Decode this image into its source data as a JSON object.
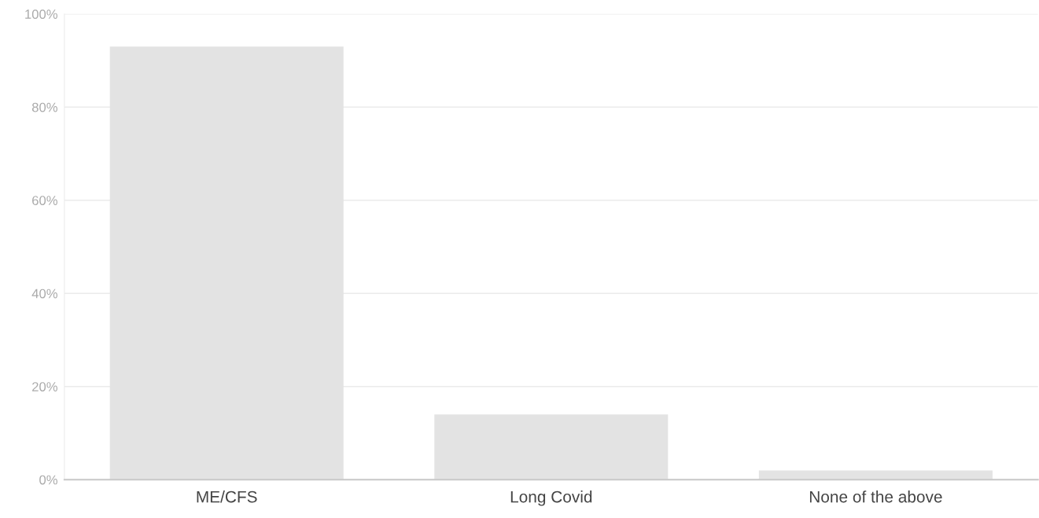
{
  "chart_data": {
    "type": "bar",
    "categories": [
      "ME/CFS",
      "Long Covid",
      "None of the above"
    ],
    "values": [
      93,
      14,
      2
    ],
    "color": "#e3e3e3",
    "ylim": [
      0,
      100
    ],
    "yticks": [
      {
        "value": 0,
        "label": "0%"
      },
      {
        "value": 20,
        "label": "20%"
      },
      {
        "value": 40,
        "label": "40%"
      },
      {
        "value": 60,
        "label": "60%"
      },
      {
        "value": 80,
        "label": "80%"
      },
      {
        "value": 100,
        "label": "100%"
      }
    ],
    "grid": "y",
    "legend": false
  }
}
